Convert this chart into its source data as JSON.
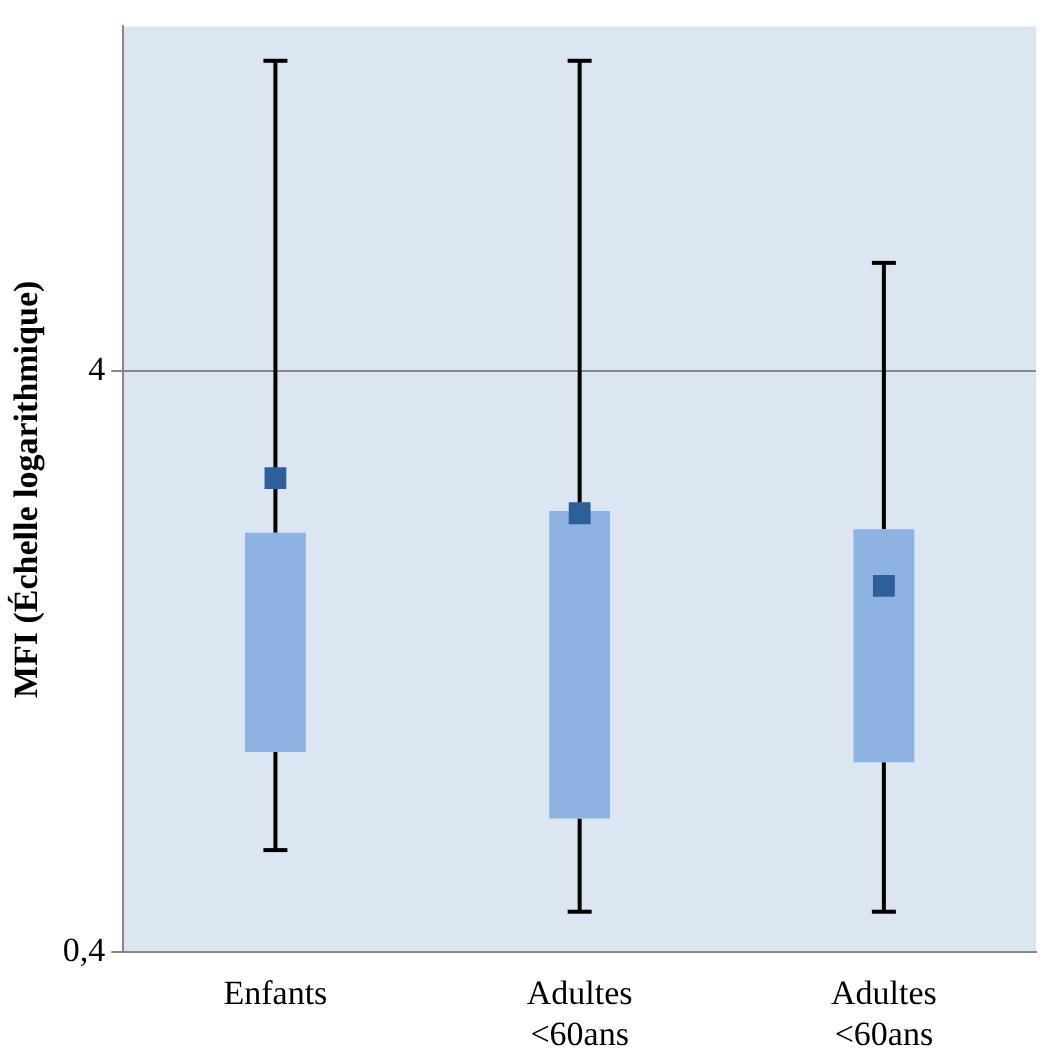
{
  "chart_data": {
    "type": "box",
    "ylabel": "MFI (Échelle logarithmique)",
    "categories": [
      "Enfants",
      "Adultes <60ans",
      "Adultes <60ans"
    ],
    "series": [
      {
        "color": "#8db3e2",
        "boxes": [
          {
            "low": 0.6,
            "q1": 0.885,
            "median": null,
            "q3": 2.11,
            "high": 13.7
          },
          {
            "low": 0.47,
            "q1": 0.68,
            "median": null,
            "q3": 2.3,
            "high": 13.7
          },
          {
            "low": 0.47,
            "q1": 0.85,
            "median": null,
            "q3": 2.14,
            "high": 6.15
          }
        ]
      },
      {
        "type": "scatter",
        "color": "#2e5f9a",
        "values": [
          2.62,
          2.28,
          1.71
        ]
      }
    ],
    "marker": "square",
    "log": true,
    "ylim": [
      0.4,
      15.7
    ],
    "yticks": [
      {
        "value": 0.4,
        "label": "0,4"
      },
      4
    ],
    "grid": "y"
  }
}
